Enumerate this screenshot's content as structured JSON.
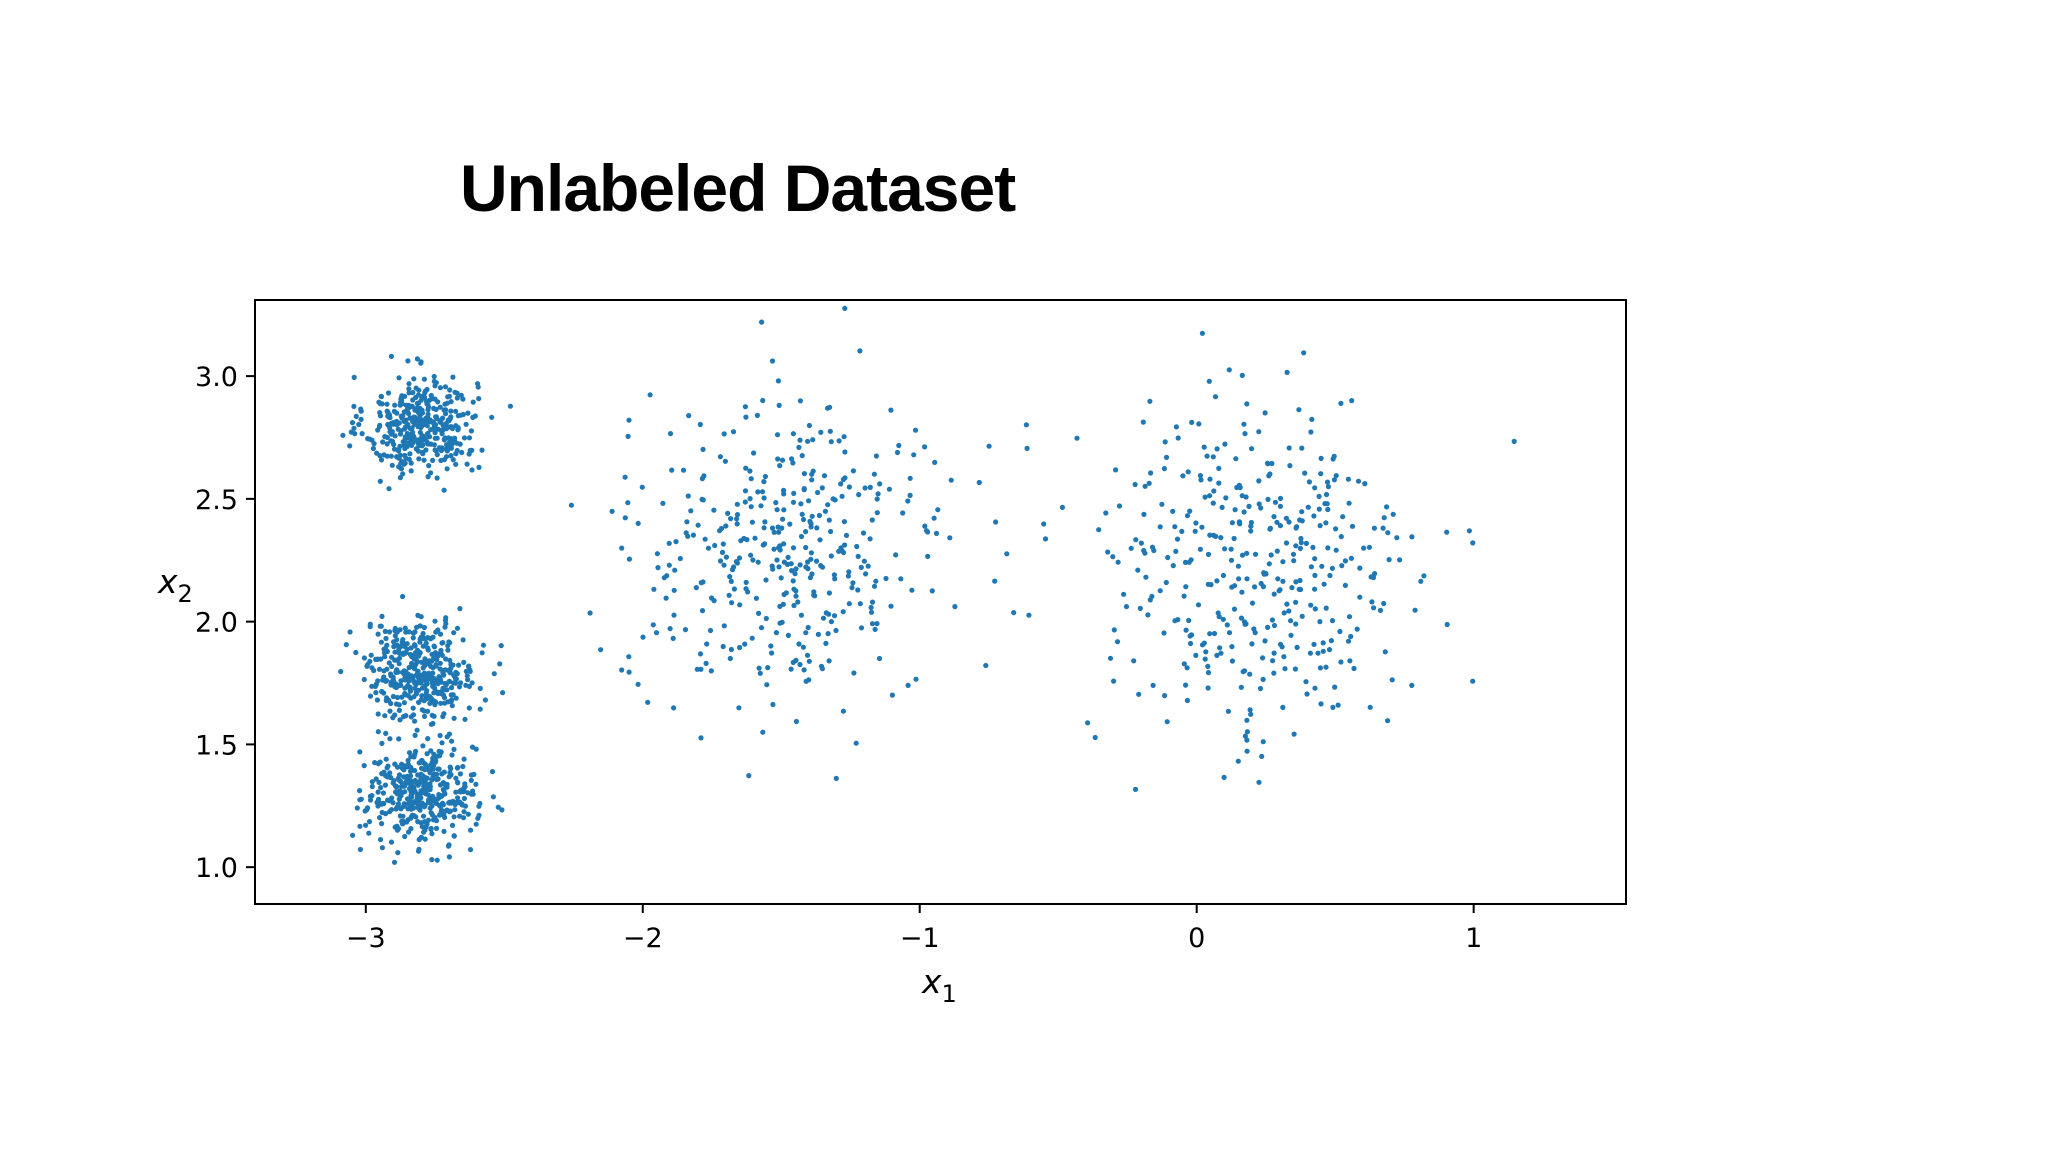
{
  "slide": {
    "title": "Unlabeled Dataset"
  },
  "chart_data": {
    "type": "scatter",
    "title": "",
    "xlabel": "x",
    "xlabel_sub": "1",
    "ylabel": "x",
    "ylabel_sub": "2",
    "xlim": [
      -3.4,
      1.55
    ],
    "ylim": [
      0.85,
      3.31
    ],
    "x_ticks": [
      -3,
      -2,
      -1,
      0,
      1
    ],
    "x_tick_labels": [
      "−3",
      "−2",
      "−1",
      "0",
      "1"
    ],
    "y_ticks": [
      1.0,
      1.5,
      2.0,
      2.5,
      3.0
    ],
    "y_tick_labels": [
      "1.0",
      "1.5",
      "2.0",
      "2.5",
      "3.0"
    ],
    "grid": false,
    "legend": "none",
    "point_color": "#1f77b4",
    "point_count": 2000,
    "clusters": [
      {
        "center": [
          -2.8,
          2.8
        ],
        "spread": [
          0.1,
          0.1
        ],
        "count": 400
      },
      {
        "center": [
          -2.8,
          1.8
        ],
        "spread": [
          0.1,
          0.1
        ],
        "count": 400
      },
      {
        "center": [
          -2.8,
          1.3
        ],
        "spread": [
          0.1,
          0.1
        ],
        "count": 400
      },
      {
        "center": [
          -1.47,
          2.28
        ],
        "spread": [
          0.3,
          0.3
        ],
        "count": 400
      },
      {
        "center": [
          0.2,
          2.2
        ],
        "spread": [
          0.3,
          0.38
        ],
        "count": 400
      }
    ]
  }
}
